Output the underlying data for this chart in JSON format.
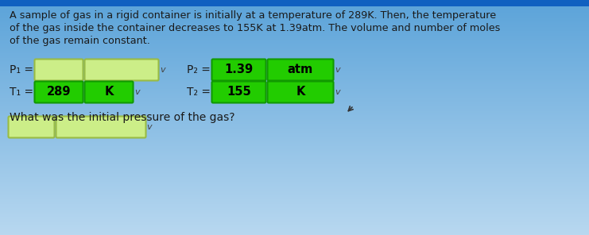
{
  "bg_top": "#5ba3d9",
  "bg_bottom": "#b8d8f0",
  "bg_mid": "#a0c8e8",
  "header_color": "#1060c0",
  "text_color": "#1a1a1a",
  "paragraph_line1": "A sample of gas in a rigid container is initially at a temperature of 289K. Then, the temperature",
  "paragraph_line2": "of the gas inside the container decreases to 155K at 1.39atm. The volume and number of moles",
  "paragraph_line3": "of the gas remain constant.",
  "green_dark": "#22cc00",
  "green_dark_edge": "#119900",
  "green_light": "#ccee88",
  "green_light_edge": "#99bb44",
  "row1_left_label": "P₁ =",
  "row1_right_label": "P₂ =",
  "row2_left_label": "T₁ =",
  "row2_right_label": "T₂ =",
  "p2_box1_text": "1.39",
  "p2_box2_text": "atm",
  "t1_box1_text": "289",
  "t1_box2_text": "K",
  "t2_box1_text": "155",
  "t2_box2_text": "K",
  "question": "What was the initial pressure of the gas?"
}
